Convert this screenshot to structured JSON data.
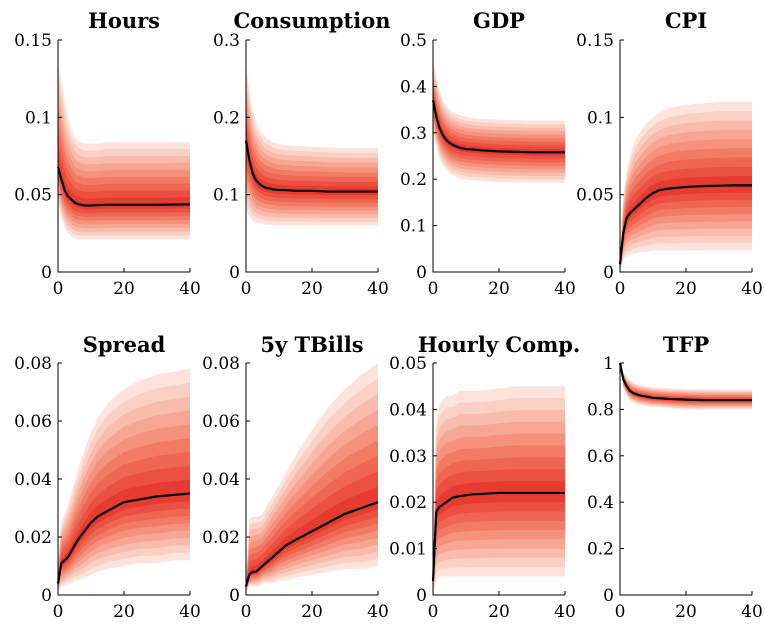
{
  "chart_data": [
    {
      "type": "area",
      "title": "Hours",
      "xlim": [
        0,
        40
      ],
      "ylim": [
        0,
        0.15
      ],
      "xticks": [
        0,
        20,
        40
      ],
      "yticks": [
        0,
        0.05,
        0.1,
        0.15
      ],
      "ytick_labels": [
        "0",
        "0.05",
        "0.1",
        "0.15"
      ],
      "x": [
        0,
        1,
        2,
        3,
        4,
        5,
        6,
        8,
        10,
        12,
        15,
        20,
        25,
        30,
        35,
        40
      ],
      "median": [
        0.068,
        0.06,
        0.053,
        0.049,
        0.047,
        0.045,
        0.044,
        0.043,
        0.043,
        0.0432,
        0.0435,
        0.0435,
        0.0435,
        0.0435,
        0.0436,
        0.0437
      ],
      "band_low": [
        0.045,
        0.035,
        0.029,
        0.025,
        0.023,
        0.022,
        0.021,
        0.021,
        0.021,
        0.021,
        0.021,
        0.021,
        0.021,
        0.021,
        0.021,
        0.021
      ],
      "band_high": [
        0.135,
        0.125,
        0.11,
        0.1,
        0.093,
        0.088,
        0.085,
        0.083,
        0.083,
        0.083,
        0.084,
        0.084,
        0.084,
        0.084,
        0.084,
        0.084
      ]
    },
    {
      "type": "area",
      "title": "Consumption",
      "xlim": [
        0,
        40
      ],
      "ylim": [
        0,
        0.3
      ],
      "xticks": [
        0,
        20,
        40
      ],
      "yticks": [
        0,
        0.1,
        0.2,
        0.3
      ],
      "ytick_labels": [
        "0",
        "0.1",
        "0.2",
        "0.3"
      ],
      "x": [
        0,
        1,
        2,
        3,
        4,
        5,
        6,
        8,
        10,
        12,
        15,
        20,
        25,
        30,
        35,
        40
      ],
      "median": [
        0.17,
        0.145,
        0.128,
        0.119,
        0.114,
        0.111,
        0.109,
        0.107,
        0.106,
        0.106,
        0.105,
        0.105,
        0.104,
        0.104,
        0.104,
        0.104
      ],
      "band_low": [
        0.08,
        0.072,
        0.067,
        0.064,
        0.063,
        0.062,
        0.061,
        0.061,
        0.06,
        0.06,
        0.06,
        0.06,
        0.06,
        0.06,
        0.06,
        0.06
      ],
      "band_high": [
        0.27,
        0.235,
        0.21,
        0.195,
        0.185,
        0.178,
        0.174,
        0.168,
        0.165,
        0.164,
        0.163,
        0.162,
        0.161,
        0.16,
        0.16,
        0.16
      ]
    },
    {
      "type": "area",
      "title": "GDP",
      "xlim": [
        0,
        40
      ],
      "ylim": [
        0,
        0.5
      ],
      "xticks": [
        0,
        20,
        40
      ],
      "yticks": [
        0,
        0.1,
        0.2,
        0.3,
        0.4,
        0.5
      ],
      "ytick_labels": [
        "0",
        "0.1",
        "0.2",
        "0.3",
        "0.4",
        "0.5"
      ],
      "x": [
        0,
        1,
        2,
        3,
        4,
        5,
        6,
        8,
        10,
        12,
        15,
        20,
        25,
        30,
        35,
        40
      ],
      "median": [
        0.37,
        0.335,
        0.31,
        0.295,
        0.285,
        0.278,
        0.274,
        0.268,
        0.265,
        0.264,
        0.262,
        0.26,
        0.259,
        0.258,
        0.258,
        0.258
      ],
      "band_low": [
        0.3,
        0.27,
        0.245,
        0.23,
        0.22,
        0.213,
        0.208,
        0.202,
        0.199,
        0.198,
        0.196,
        0.194,
        0.193,
        0.192,
        0.192,
        0.192
      ],
      "band_high": [
        0.46,
        0.42,
        0.39,
        0.37,
        0.36,
        0.35,
        0.345,
        0.338,
        0.334,
        0.332,
        0.33,
        0.328,
        0.327,
        0.326,
        0.326,
        0.326
      ]
    },
    {
      "type": "area",
      "title": "CPI",
      "xlim": [
        0,
        40
      ],
      "ylim": [
        0,
        0.15
      ],
      "xticks": [
        0,
        20,
        40
      ],
      "yticks": [
        0,
        0.05,
        0.1,
        0.15
      ],
      "ytick_labels": [
        "0",
        "0.05",
        "0.1",
        "0.15"
      ],
      "x": [
        0,
        1,
        2,
        3,
        4,
        5,
        6,
        8,
        10,
        12,
        15,
        20,
        25,
        30,
        35,
        40
      ],
      "median": [
        0.005,
        0.025,
        0.035,
        0.038,
        0.04,
        0.042,
        0.044,
        0.048,
        0.051,
        0.053,
        0.054,
        0.055,
        0.0555,
        0.0558,
        0.056,
        0.056
      ],
      "band_low": [
        0.0,
        0.008,
        0.01,
        0.011,
        0.012,
        0.012,
        0.013,
        0.013,
        0.014,
        0.014,
        0.014,
        0.014,
        0.014,
        0.014,
        0.014,
        0.014
      ],
      "band_high": [
        0.01,
        0.05,
        0.065,
        0.075,
        0.082,
        0.087,
        0.09,
        0.096,
        0.1,
        0.103,
        0.106,
        0.108,
        0.109,
        0.11,
        0.11,
        0.11
      ]
    },
    {
      "type": "area",
      "title": "Spread",
      "xlim": [
        0,
        40
      ],
      "ylim": [
        0,
        0.08
      ],
      "xticks": [
        0,
        20,
        40
      ],
      "yticks": [
        0,
        0.02,
        0.04,
        0.06,
        0.08
      ],
      "ytick_labels": [
        "0",
        "0.02",
        "0.04",
        "0.06",
        "0.08"
      ],
      "x": [
        0,
        1,
        2,
        3,
        4,
        5,
        6,
        8,
        10,
        12,
        15,
        20,
        25,
        30,
        35,
        40
      ],
      "median": [
        0.004,
        0.011,
        0.012,
        0.013,
        0.015,
        0.017,
        0.019,
        0.022,
        0.025,
        0.027,
        0.029,
        0.032,
        0.033,
        0.034,
        0.0345,
        0.035
      ],
      "band_low": [
        0.001,
        0.003,
        0.003,
        0.004,
        0.004,
        0.005,
        0.005,
        0.006,
        0.007,
        0.008,
        0.009,
        0.01,
        0.011,
        0.011,
        0.012,
        0.012
      ],
      "band_high": [
        0.012,
        0.025,
        0.028,
        0.031,
        0.035,
        0.039,
        0.043,
        0.05,
        0.056,
        0.061,
        0.066,
        0.071,
        0.074,
        0.076,
        0.077,
        0.078
      ]
    },
    {
      "type": "area",
      "title": "5y TBills",
      "xlim": [
        0,
        40
      ],
      "ylim": [
        0,
        0.08
      ],
      "xticks": [
        0,
        20,
        40
      ],
      "yticks": [
        0,
        0.02,
        0.04,
        0.06,
        0.08
      ],
      "ytick_labels": [
        "0",
        "0.02",
        "0.04",
        "0.06",
        "0.08"
      ],
      "x": [
        0,
        1,
        2,
        3,
        4,
        5,
        6,
        8,
        10,
        12,
        15,
        20,
        25,
        30,
        35,
        40
      ],
      "median": [
        0.003,
        0.007,
        0.008,
        0.008,
        0.009,
        0.01,
        0.011,
        0.013,
        0.015,
        0.017,
        0.019,
        0.022,
        0.025,
        0.028,
        0.03,
        0.032
      ],
      "band_low": [
        0.001,
        0.003,
        0.003,
        0.003,
        0.003,
        0.004,
        0.004,
        0.004,
        0.005,
        0.005,
        0.006,
        0.007,
        0.008,
        0.009,
        0.009,
        0.01
      ],
      "band_high": [
        0.005,
        0.026,
        0.027,
        0.027,
        0.027,
        0.028,
        0.03,
        0.034,
        0.038,
        0.042,
        0.048,
        0.057,
        0.065,
        0.071,
        0.076,
        0.08
      ]
    },
    {
      "type": "area",
      "title": "Hourly Comp.",
      "xlim": [
        0,
        40
      ],
      "ylim": [
        0,
        0.05
      ],
      "xticks": [
        0,
        20,
        40
      ],
      "yticks": [
        0,
        0.01,
        0.02,
        0.03,
        0.04,
        0.05
      ],
      "ytick_labels": [
        "0",
        "0.01",
        "0.02",
        "0.03",
        "0.04",
        "0.05"
      ],
      "x": [
        0,
        1,
        2,
        3,
        4,
        5,
        6,
        8,
        10,
        12,
        15,
        20,
        25,
        30,
        35,
        40
      ],
      "median": [
        0.003,
        0.018,
        0.019,
        0.0195,
        0.02,
        0.0205,
        0.021,
        0.0213,
        0.0215,
        0.0217,
        0.0218,
        0.022,
        0.022,
        0.022,
        0.022,
        0.022
      ],
      "band_low": [
        0.0,
        0.003,
        0.004,
        0.004,
        0.004,
        0.004,
        0.004,
        0.004,
        0.004,
        0.004,
        0.004,
        0.004,
        0.004,
        0.004,
        0.004,
        0.004
      ],
      "band_high": [
        0.006,
        0.038,
        0.041,
        0.042,
        0.043,
        0.043,
        0.043,
        0.044,
        0.044,
        0.044,
        0.044,
        0.0445,
        0.045,
        0.045,
        0.045,
        0.045
      ]
    },
    {
      "type": "area",
      "title": "TFP",
      "xlim": [
        0,
        40
      ],
      "ylim": [
        0,
        1
      ],
      "xticks": [
        0,
        20,
        40
      ],
      "yticks": [
        0,
        0.2,
        0.4,
        0.6,
        0.8,
        1
      ],
      "ytick_labels": [
        "0",
        "0.2",
        "0.4",
        "0.6",
        "0.8",
        "1"
      ],
      "x": [
        0,
        1,
        2,
        3,
        4,
        5,
        6,
        8,
        10,
        12,
        15,
        20,
        25,
        30,
        35,
        40
      ],
      "median": [
        1.0,
        0.93,
        0.9,
        0.88,
        0.87,
        0.865,
        0.86,
        0.855,
        0.85,
        0.848,
        0.845,
        0.842,
        0.84,
        0.84,
        0.84,
        0.84
      ],
      "band_low": [
        1.0,
        0.89,
        0.86,
        0.84,
        0.83,
        0.825,
        0.82,
        0.815,
        0.81,
        0.81,
        0.805,
        0.8,
        0.8,
        0.8,
        0.8,
        0.8
      ],
      "band_high": [
        1.0,
        0.96,
        0.94,
        0.925,
        0.915,
        0.91,
        0.905,
        0.9,
        0.895,
        0.893,
        0.89,
        0.888,
        0.886,
        0.885,
        0.885,
        0.885
      ]
    }
  ],
  "style": {
    "band_colors": [
      "#fde3dc",
      "#fbd0c4",
      "#f9bbab",
      "#f7a693",
      "#f5917c",
      "#f27b66",
      "#ef6652",
      "#ec5040",
      "#e53b30"
    ],
    "median_color": "#000000",
    "xtick_labels": [
      "0",
      "20",
      "40"
    ]
  }
}
